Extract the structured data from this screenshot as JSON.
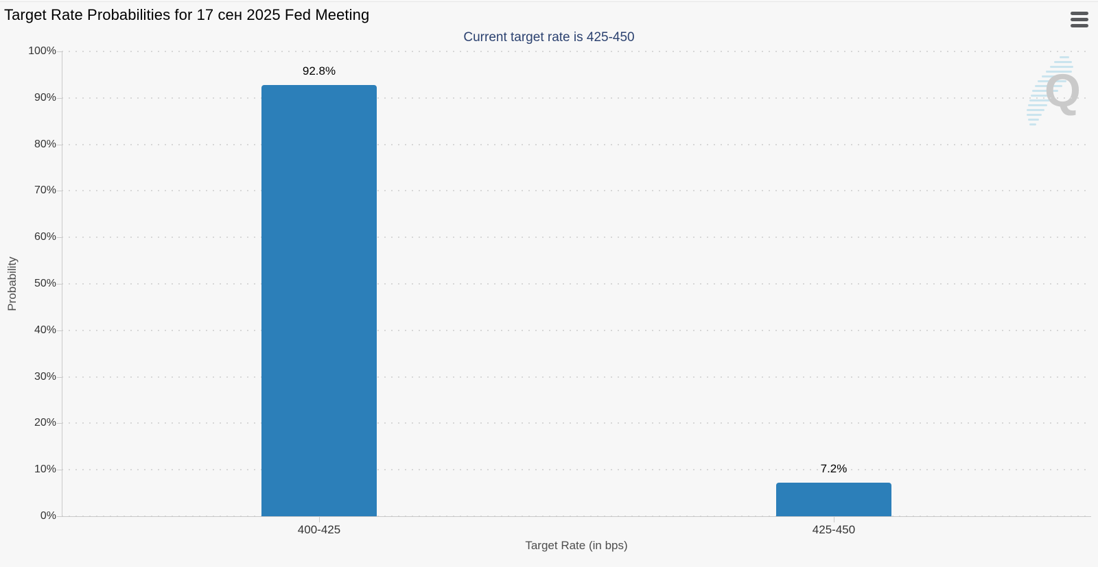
{
  "chart_data": {
    "type": "bar",
    "title": "Target Rate Probabilities for 17 сен 2025 Fed Meeting",
    "subtitle": "Current target rate is 425-450",
    "categories": [
      "400-425",
      "425-450"
    ],
    "values": [
      92.8,
      7.2
    ],
    "data_labels": [
      "92.8%",
      "7.2%"
    ],
    "xlabel": "Target Rate (in bps)",
    "ylabel": "Probability",
    "ylim": [
      0,
      100
    ],
    "yticks": [
      0,
      10,
      20,
      30,
      40,
      50,
      60,
      70,
      80,
      90,
      100
    ],
    "ytick_labels": [
      "0%",
      "10%",
      "20%",
      "30%",
      "40%",
      "50%",
      "60%",
      "70%",
      "80%",
      "90%",
      "100%"
    ],
    "grid": "horizontal-dotted",
    "legend": "none",
    "bar_color": "#2c7fb9",
    "subtitle_color": "#2c4270"
  },
  "menu": {
    "icon": "hamburger-icon"
  },
  "watermark": {
    "letter": "Q"
  }
}
